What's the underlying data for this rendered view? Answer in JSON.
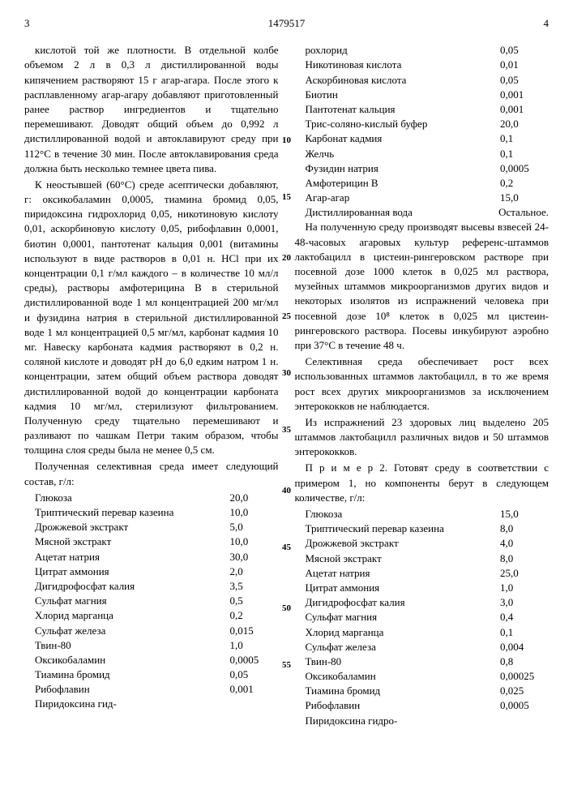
{
  "header": {
    "page_left": "3",
    "doc_number": "1479517",
    "page_right": "4"
  },
  "line_numbers": [
    "10",
    "15",
    "20",
    "25",
    "30",
    "35",
    "40",
    "45",
    "50",
    "55"
  ],
  "left_col": {
    "para1": "кислотой той же плотности. В отдельной колбе объемом 2 л в 0,3 л дистиллированной воды кипячением растворяют 15 г агар-агара. После этого к расплавленному агар-агару добавляют приготовленный ранее раствор ингредиентов и тщательно перемешивают. Доводят общий объем до 0,992 л дистиллированной водой и автоклавируют среду при 112°С в течение 30 мин. После автоклавирования среда должна быть несколько темнее цвета пива.",
    "para2": "К неостывшей (60°С) среде асептически добавляют, г: оксикобаламин 0,0005, тиамина бромид 0,05, пиридоксина гидрохлорид 0,05, никотиновую кислоту 0,01, аскорбиновую кислоту 0,05, рибофлавин 0,0001, биотин 0,0001, пантотенат кальция 0,001 (витамины используют в виде растворов в 0,01 н. HCl при их концентрации 0,1 г/мл каждого – в количестве 10 мл/л среды), растворы амфотерицина В в стерильной дистиллированной воде 1 мл концентрацией 200 мг/мл и фузидина натрия в стерильной дистиллированной воде 1 мл концентрацией 0,5 мг/мл, карбонат кадмия 10 мг. Навеску карбоната кадмия растворяют в 0,2 н. соляной кислоте и доводят pH до 6,0 едким натром 1 н. концентрации, затем общий объем раствора доводят дистиллированной водой до концентрации карбоната кадмия 10 мг/мл, стерилизуют фильтрованием. Полученную среду тщательно перемешивают и разливают по чашкам Петри таким образом, чтобы толщина слоя среды была не менее 0,5 см.",
    "para3": "Полученная селективная среда имеет следующий состав, г/л:",
    "table1": [
      {
        "label": "Глюкоза",
        "value": "20,0"
      },
      {
        "label": "Триптический перевар казеина",
        "value": "10,0"
      },
      {
        "label": "Дрожжевой экстракт",
        "value": "5,0"
      },
      {
        "label": "Мясной экстракт",
        "value": "10,0"
      },
      {
        "label": "Ацетат натрия",
        "value": "30,0"
      },
      {
        "label": "Цитрат аммония",
        "value": "2,0"
      },
      {
        "label": "Дигидрофосфат калия",
        "value": "3,5"
      },
      {
        "label": "Сульфат магния",
        "value": "0,5"
      },
      {
        "label": "Хлорид марганца",
        "value": "0,2"
      },
      {
        "label": "Сульфат железа",
        "value": "0,015"
      },
      {
        "label": "Твин-80",
        "value": "1,0"
      },
      {
        "label": "Оксикобаламин",
        "value": "0,0005"
      },
      {
        "label": "Тиамина бромид",
        "value": "0,05"
      },
      {
        "label": "Рибофлавин",
        "value": "0,001"
      },
      {
        "label": "Пиридоксина гид-",
        "value": ""
      }
    ]
  },
  "right_col": {
    "table2": [
      {
        "label": "рохлорид",
        "value": "0,05"
      },
      {
        "label": "Никотиновая кислота",
        "value": "0,01"
      },
      {
        "label": "Аскорбиновая кислота",
        "value": "0,05"
      },
      {
        "label": "Биотин",
        "value": "0,001"
      },
      {
        "label": "Пантотенат кальция",
        "value": "0,001"
      },
      {
        "label": "Трис-соляно-кислый буфер",
        "value": "20,0"
      },
      {
        "label": "Карбонат кадмия",
        "value": "0,1"
      },
      {
        "label": "Желчь",
        "value": "0,1"
      },
      {
        "label": "Фузидин натрия",
        "value": "0,0005"
      },
      {
        "label": "Амфотерицин В",
        "value": "0,2"
      },
      {
        "label": "Агар-агар",
        "value": "15,0"
      },
      {
        "label": "Дистиллированная вода",
        "value": "Остальное."
      }
    ],
    "para1": "На полученную среду производят высевы взвесей 24-48-часовых агаровых культур референс-штаммов лактобацилл в цистеин-рингеровском растворе при посевной дозе 1000 клеток в 0,025 мл раствора, музейных штаммов микроорганизмов других видов и некоторых изолятов из испражнений человека при посевной дозе 10⁸ клеток в 0,025 мл цистеин-рингеровского раствора. Посевы инкубируют аэробно при 37°С в течение 48 ч.",
    "para2": "Селективная среда обеспечивает рост всех использованных штаммов лактобацилл, в то же время рост всех других микроорганизмов за исключением энтерококков не наблюдается.",
    "para3": "Из испражнений 23 здоровых лиц выделено 205 штаммов лактобацилл различных видов и 50 штаммов энтерококков.",
    "para4": "П р и м е р  2. Готовят среду в соответствии с примером 1, но компоненты берут в следующем количестве, г/л:",
    "table3": [
      {
        "label": "Глюкоза",
        "value": "15,0"
      },
      {
        "label": "Триптический перевар казеина",
        "value": "8,0"
      },
      {
        "label": "Дрожжевой экстракт",
        "value": "4,0"
      },
      {
        "label": "Мясной экстракт",
        "value": "8,0"
      },
      {
        "label": "Ацетат натрия",
        "value": "25,0"
      },
      {
        "label": "Цитрат аммония",
        "value": "1,0"
      },
      {
        "label": "Дигидрофосфат калия",
        "value": "3,0"
      },
      {
        "label": "Сульфат магния",
        "value": "0,4"
      },
      {
        "label": "Хлорид марганца",
        "value": "0,1"
      },
      {
        "label": "Сульфат железа",
        "value": "0,004"
      },
      {
        "label": "Твин-80",
        "value": "0,8"
      },
      {
        "label": "Оксикобаламин",
        "value": "0,00025"
      },
      {
        "label": "Тиамина бромид",
        "value": "0,025"
      },
      {
        "label": "Рибофлавин",
        "value": "0,0005"
      },
      {
        "label": "Пиридоксина гидро-",
        "value": ""
      }
    ]
  }
}
